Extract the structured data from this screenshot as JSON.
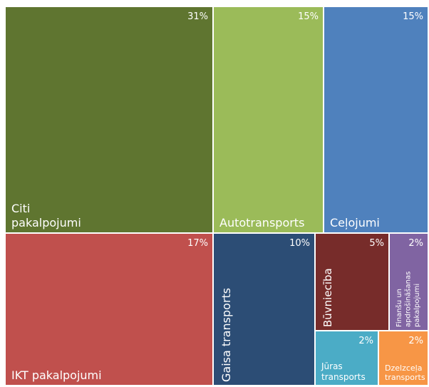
{
  "chart_data": {
    "type": "treemap",
    "categories": [
      "Citi pakalpojumi",
      "IKT pakalpojumi",
      "Autotransports",
      "Ceļojumi",
      "Gaisa transports",
      "Būvniecība",
      "Finanšu un apdrošināšanas pakalpojumi",
      "Jūras transports",
      "Dzelzceļa transports"
    ],
    "values": [
      31,
      17,
      15,
      15,
      10,
      5,
      2,
      2,
      2
    ],
    "value_labels": [
      "31%",
      "17%",
      "15%",
      "15%",
      "10%",
      "5%",
      "2%",
      "2%",
      "2%"
    ],
    "colors": [
      "#5f7530",
      "#c0504d",
      "#9bbb59",
      "#4f81bd",
      "#2c4d75",
      "#772c2a",
      "#8064a2",
      "#4bacc6",
      "#f79646"
    ]
  }
}
